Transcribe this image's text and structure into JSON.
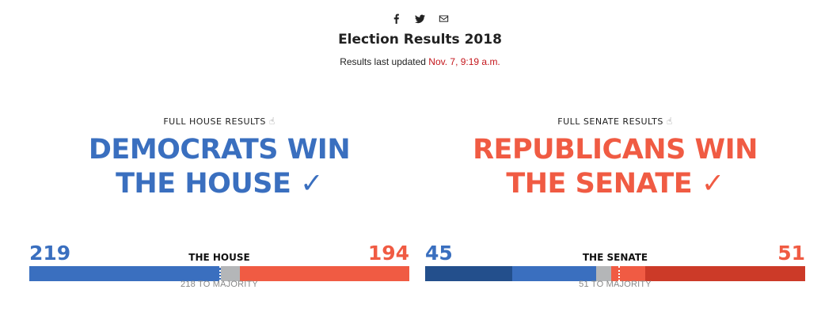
{
  "share": {
    "facebook_icon": "facebook-icon",
    "twitter_icon": "twitter-icon",
    "email_icon": "email-icon"
  },
  "title": "Election Results 2018",
  "updated": {
    "prefix": "Results last updated",
    "time": "Nov. 7, 9:19 a.m."
  },
  "house": {
    "label": "FULL HOUSE RESULTS",
    "label_icon": "pointing-hand-icon",
    "headline_line1": "DEMOCRATS WIN",
    "headline_line2": "THE HOUSE ✓",
    "dem_count": "219",
    "rep_count": "194",
    "chamber": "THE HOUSE",
    "majority_label": "218 TO MAJORITY",
    "colors": {
      "dem": "#3a6fbf",
      "undecided": "#b4b6b8",
      "rep": "#f05b43"
    },
    "seats": {
      "dem": 219,
      "undecided": 22,
      "rep": 194,
      "majority": 218,
      "total": 435
    }
  },
  "senate": {
    "label": "FULL SENATE RESULTS",
    "label_icon": "pointing-hand-icon",
    "headline_line1": "REPUBLICANS WIN",
    "headline_line2": "THE SENATE ✓",
    "dem_count": "45",
    "rep_count": "51",
    "chamber": "THE SENATE",
    "majority_label": "51 TO MAJORITY",
    "colors": {
      "dem_held": "#234f8c",
      "dem": "#3a6fbf",
      "undecided": "#b4b6b8",
      "rep": "#f05b43",
      "rep_held": "#cc3a28"
    },
    "seats": {
      "dem_held": 23,
      "dem": 22,
      "undecided": 4,
      "rep": 9,
      "rep_held": 42,
      "majority": 51,
      "total": 100
    }
  }
}
